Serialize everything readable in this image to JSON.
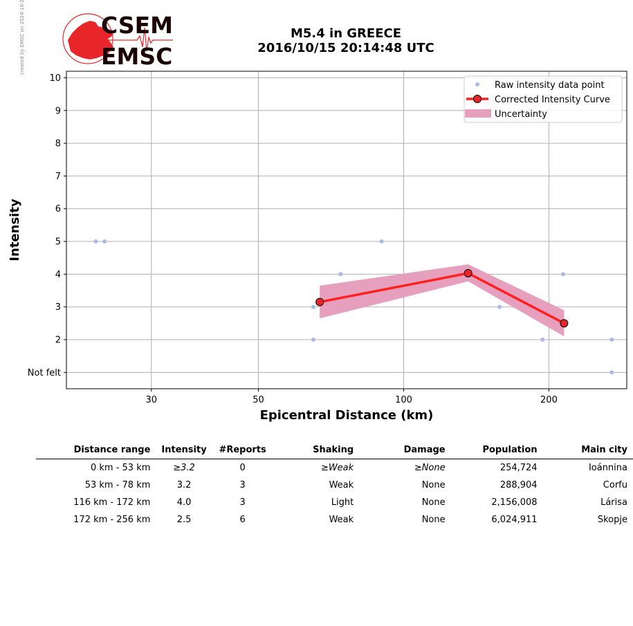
{
  "watermark": "created by EMSC on 2024-10-23 14:54:50 UTC",
  "logo": {
    "line1": "CSEM",
    "line2": "EMSC",
    "red": "#e8262a",
    "dark": "#1a0000"
  },
  "title": {
    "line1": "M5.4 in GREECE",
    "line2": "2016/10/15 20:14:48 UTC"
  },
  "chart_data": {
    "type": "scatter",
    "xlabel": "Epicentral Distance (km)",
    "ylabel": "Intensity",
    "xscale": "log",
    "xlim": [
      20,
      290
    ],
    "ylim": [
      0.5,
      10.2
    ],
    "xticks": [
      30,
      50,
      100,
      200
    ],
    "yticks": [
      1,
      2,
      3,
      4,
      5,
      6,
      7,
      8,
      9,
      10
    ],
    "ytick_labels": [
      "Not felt",
      "2",
      "3",
      "4",
      "5",
      "6",
      "7",
      "8",
      "9",
      "10"
    ],
    "grid": true,
    "legend_position": "top-right",
    "colors": {
      "raw": "#aab9e8",
      "curve": "#ff2020",
      "marker": "#e8262a",
      "uncertainty": "#e6a0bd",
      "grid": "#b0b0b0"
    },
    "series": [
      {
        "name": "Raw intensity data point",
        "kind": "points",
        "x": [
          23,
          24,
          65,
          65,
          74,
          90,
          158,
          194,
          214,
          270,
          270
        ],
        "y": [
          5,
          5,
          3,
          2,
          4,
          5,
          3,
          2,
          4,
          2,
          1
        ]
      },
      {
        "name": "Corrected Intensity Curve",
        "kind": "line",
        "x": [
          67,
          136,
          215
        ],
        "y": [
          3.15,
          4.03,
          2.5
        ]
      },
      {
        "name": "Uncertainty",
        "kind": "band",
        "x": [
          67,
          136,
          215
        ],
        "upper": [
          3.65,
          4.3,
          2.9
        ],
        "lower": [
          2.65,
          3.78,
          2.1
        ]
      }
    ]
  },
  "table": {
    "headers": [
      "Distance range",
      "Intensity",
      "#Reports",
      "Shaking",
      "Damage",
      "Population",
      "Main city"
    ],
    "rows": [
      [
        "0 km -   53 km",
        "≥3.2",
        "0",
        "≥Weak",
        "≥None",
        "254,724",
        "Ioánnina"
      ],
      [
        "53 km -   78 km",
        "3.2",
        "3",
        "Weak",
        "None",
        "288,904",
        "Corfu"
      ],
      [
        "116 km -  172 km",
        "4.0",
        "3",
        "Light",
        "None",
        "2,156,008",
        "Lárisa"
      ],
      [
        "172 km -  256 km",
        "2.5",
        "6",
        "Weak",
        "None",
        "6,024,911",
        "Skopje"
      ]
    ]
  }
}
